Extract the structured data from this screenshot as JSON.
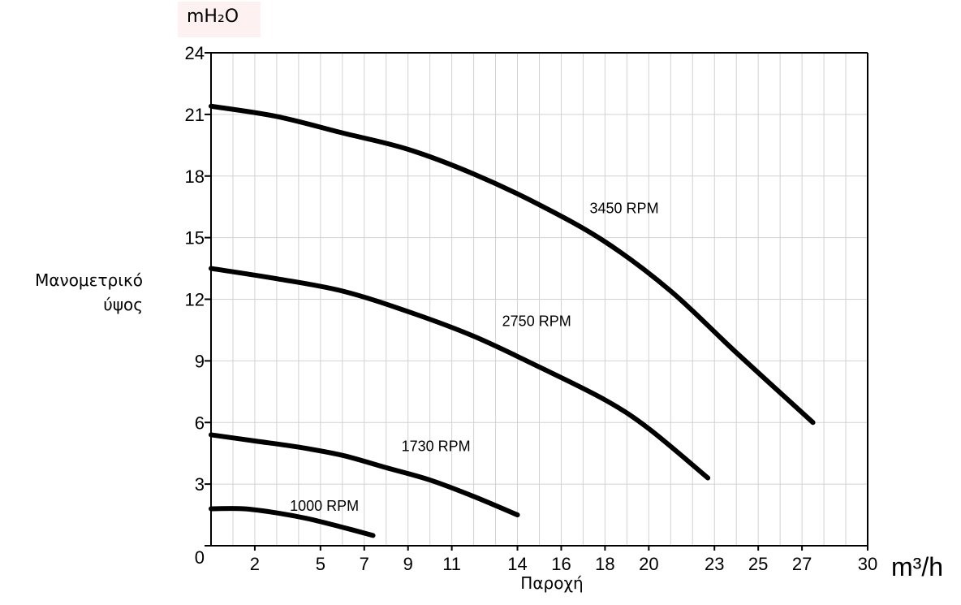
{
  "chart_data": {
    "type": "line",
    "title": "",
    "y_unit": "mH₂O",
    "x_unit": "m³/h",
    "ylabel_line1": "Μανομετρικό",
    "ylabel_line2": "ύψος",
    "xlabel": "Παροχή",
    "xlim": [
      0,
      30
    ],
    "ylim": [
      0,
      24
    ],
    "grid": true,
    "y_ticks": [
      0,
      3,
      6,
      9,
      12,
      15,
      18,
      21,
      24
    ],
    "y_tick_labels": [
      "0",
      "3",
      "6",
      "9",
      "12",
      "15",
      "18",
      "21",
      "24"
    ],
    "x_ticks": [
      2,
      5,
      7,
      9,
      11,
      14,
      16,
      18,
      20,
      23,
      25,
      27,
      30
    ],
    "x_tick_labels": [
      "2",
      "5",
      "7",
      "9",
      "11",
      "14",
      "16",
      "18",
      "20",
      "23",
      "25",
      "27",
      "30"
    ],
    "series": [
      {
        "name": "3450 RPM",
        "points": [
          [
            0,
            21.4
          ],
          [
            3,
            20.9
          ],
          [
            6,
            20.1
          ],
          [
            9,
            19.3
          ],
          [
            12,
            18.1
          ],
          [
            15,
            16.6
          ],
          [
            18,
            14.8
          ],
          [
            21,
            12.4
          ],
          [
            24,
            9.4
          ],
          [
            27.5,
            6.0
          ]
        ]
      },
      {
        "name": "2750 RPM",
        "points": [
          [
            0,
            13.5
          ],
          [
            3,
            13.0
          ],
          [
            6,
            12.4
          ],
          [
            9,
            11.4
          ],
          [
            12,
            10.2
          ],
          [
            15,
            8.7
          ],
          [
            18,
            7.1
          ],
          [
            20,
            5.7
          ],
          [
            22.7,
            3.3
          ]
        ]
      },
      {
        "name": "1730 RPM",
        "points": [
          [
            0,
            5.4
          ],
          [
            2,
            5.1
          ],
          [
            4,
            4.8
          ],
          [
            6,
            4.4
          ],
          [
            8,
            3.8
          ],
          [
            10,
            3.2
          ],
          [
            12,
            2.4
          ],
          [
            14,
            1.5
          ]
        ]
      },
      {
        "name": "1000 RPM",
        "points": [
          [
            0,
            1.8
          ],
          [
            1.5,
            1.8
          ],
          [
            3,
            1.6
          ],
          [
            4.5,
            1.3
          ],
          [
            6,
            0.9
          ],
          [
            7.4,
            0.5
          ]
        ]
      }
    ]
  }
}
